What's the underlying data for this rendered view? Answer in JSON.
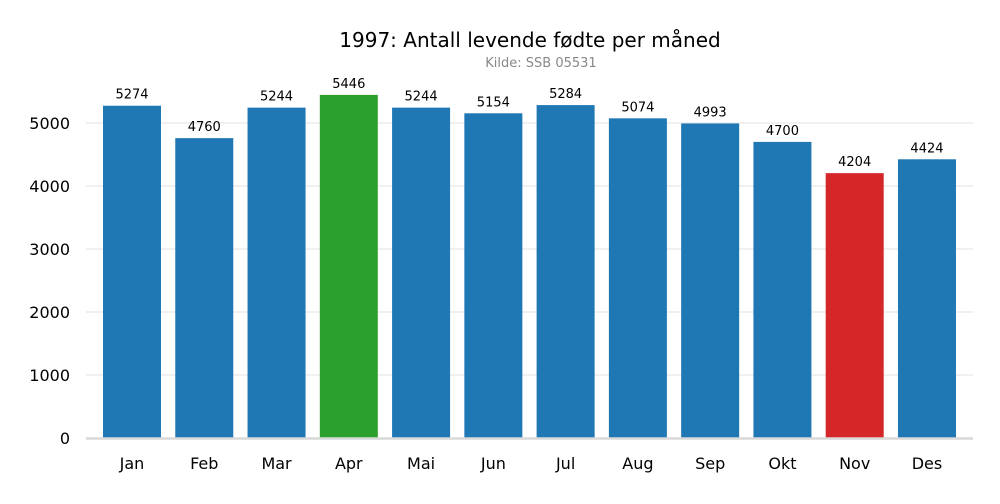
{
  "chart_data": {
    "type": "bar",
    "title": "1997: Antall levende fødte per måned",
    "subtitle": "Kilde: SSB 05531",
    "xlabel": "",
    "ylabel": "",
    "categories": [
      "Jan",
      "Feb",
      "Mar",
      "Apr",
      "Mai",
      "Jun",
      "Jul",
      "Aug",
      "Sep",
      "Okt",
      "Nov",
      "Des"
    ],
    "values": [
      5274,
      4760,
      5244,
      5446,
      5244,
      5154,
      5284,
      5074,
      4993,
      4700,
      4204,
      4424
    ],
    "ylim": [
      0,
      5650
    ],
    "yticks": [
      0,
      1000,
      2000,
      3000,
      4000,
      5000
    ],
    "grid": "horizontal",
    "colors": {
      "default": "#1f77b4",
      "max": "#2ca02c",
      "min": "#d62728",
      "grid": "#ebebeb",
      "axis": "#d9d9d9",
      "subtitle": "#888888"
    }
  }
}
